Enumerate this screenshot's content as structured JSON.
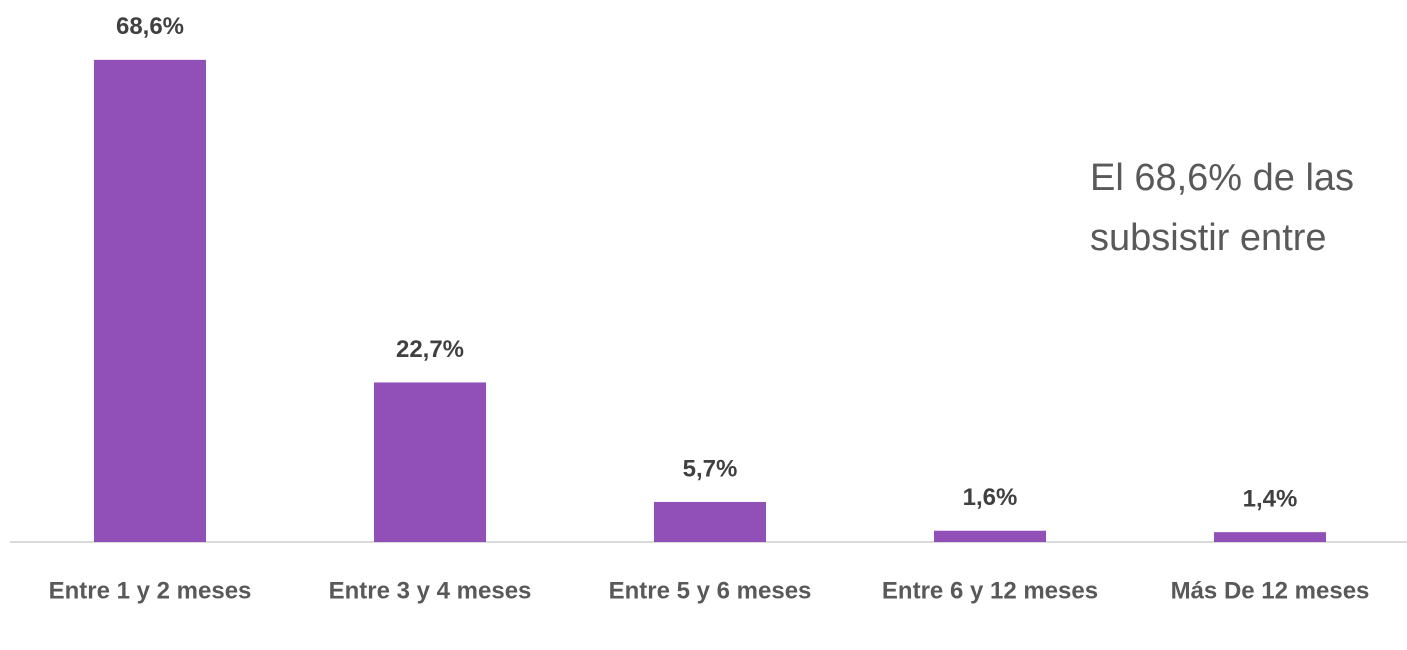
{
  "chart_data": {
    "type": "bar",
    "categories": [
      "Entre 1 y 2 meses",
      "Entre 3 y 4 meses",
      "Entre 5 y 6 meses",
      "Entre 6 y 12 meses",
      "Más De 12 meses"
    ],
    "values": [
      68.6,
      22.7,
      5.7,
      1.6,
      1.4
    ],
    "value_labels": [
      "68,6%",
      "22,7%",
      "5,7%",
      "1,6%",
      "1,4%"
    ],
    "color": "#9150b8",
    "ylim": [
      0,
      70
    ],
    "annotation": [
      "El 68,6% de las",
      "subsistir entre"
    ]
  }
}
